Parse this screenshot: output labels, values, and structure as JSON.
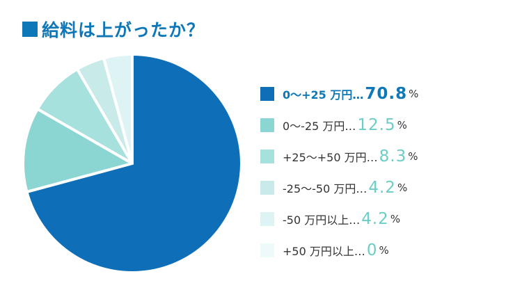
{
  "title": "■給料は上がったか？",
  "title_text": "給料は上がったか？",
  "chart_data": {
    "type": "pie",
    "title": "給料は上がったか？",
    "slices": [
      {
        "label": "0〜+25 万円",
        "value": 70.8,
        "color": "#0e6fb8"
      },
      {
        "label": "0〜-25 万円",
        "value": 12.5,
        "color": "#8bd6d2"
      },
      {
        "label": "+25〜+50 万円",
        "value": 8.3,
        "color": "#a6e1de"
      },
      {
        "label": "-25〜-50 万円",
        "value": 4.2,
        "color": "#c8ebea"
      },
      {
        "label": "-50 万円以上",
        "value": 4.2,
        "color": "#def3f3"
      },
      {
        "label": "+50 万円以上",
        "value": 0,
        "color": "#eefafa"
      }
    ],
    "legend_position": "right"
  },
  "legend": [
    {
      "label": "0〜+25 万円…",
      "pct": "70.8",
      "unit": "%",
      "color": "#0e6fb8",
      "pct_color": "#0e77b8"
    },
    {
      "label": "0〜-25 万円…",
      "pct": "12.5",
      "unit": "%",
      "color": "#8bd6d2",
      "pct_color": "#6ccdc6"
    },
    {
      "label": "+25〜+50 万円…",
      "pct": "8.3",
      "unit": "%",
      "color": "#a6e1de",
      "pct_color": "#6ccdc6"
    },
    {
      "label": "-25〜-50 万円…",
      "pct": "4.2",
      "unit": "%",
      "color": "#c8ebea",
      "pct_color": "#6ccdc6"
    },
    {
      "label": "-50 万円以上…",
      "pct": "4.2",
      "unit": "%",
      "color": "#def3f3",
      "pct_color": "#6ccdc6"
    },
    {
      "label": "+50 万円以上…",
      "pct": "0",
      "unit": "%",
      "color": "#eefafa",
      "pct_color": "#6ccdc6"
    }
  ]
}
